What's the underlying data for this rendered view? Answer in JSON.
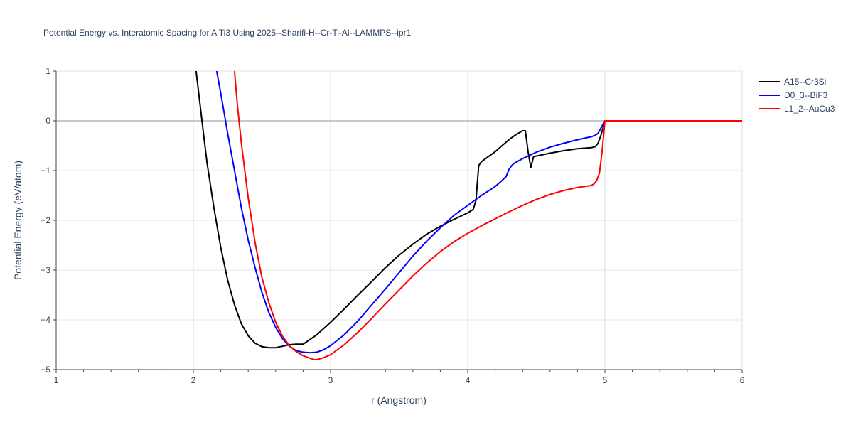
{
  "chart_data": {
    "type": "line",
    "title": "Potential Energy vs. Interatomic Spacing for AlTi3 Using 2025--Sharifi-H--Cr-Ti-Al--LAMMPS--ipr1",
    "xlabel": "r (Angstrom)",
    "ylabel": "Potential Energy (eV/atom)",
    "xlim": [
      1,
      6
    ],
    "ylim": [
      -5,
      1
    ],
    "xticks": [
      1,
      2,
      3,
      4,
      5,
      6
    ],
    "yticks": [
      -5,
      -4,
      -3,
      -2,
      -1,
      0,
      1
    ],
    "xtick_labels": [
      "1",
      "2",
      "3",
      "4",
      "5",
      "6"
    ],
    "ytick_labels": [
      "−5",
      "−4",
      "−3",
      "−2",
      "−1",
      "0",
      "1"
    ],
    "grid": true,
    "legend_position": "top-right",
    "series": [
      {
        "name": "A15--Cr3Si",
        "color": "#000000",
        "x": [
          2.02,
          2.05,
          2.08,
          2.1,
          2.15,
          2.2,
          2.25,
          2.3,
          2.35,
          2.4,
          2.45,
          2.5,
          2.55,
          2.6,
          2.65,
          2.7,
          2.75,
          2.8,
          2.9,
          3.0,
          3.1,
          3.2,
          3.3,
          3.4,
          3.5,
          3.6,
          3.7,
          3.8,
          3.9,
          4.0,
          4.04,
          4.06,
          4.08,
          4.1,
          4.15,
          4.2,
          4.25,
          4.3,
          4.35,
          4.4,
          4.42,
          4.44,
          4.46,
          4.48,
          4.6,
          4.7,
          4.8,
          4.9,
          4.93,
          4.95,
          4.97,
          5.0,
          5.5,
          6.0
        ],
        "y": [
          1.0,
          0.3,
          -0.4,
          -0.85,
          -1.75,
          -2.55,
          -3.2,
          -3.7,
          -4.08,
          -4.32,
          -4.47,
          -4.54,
          -4.56,
          -4.56,
          -4.53,
          -4.5,
          -4.49,
          -4.49,
          -4.3,
          -4.05,
          -3.78,
          -3.5,
          -3.23,
          -2.95,
          -2.7,
          -2.48,
          -2.28,
          -2.12,
          -1.98,
          -1.85,
          -1.78,
          -1.6,
          -0.9,
          -0.82,
          -0.72,
          -0.62,
          -0.5,
          -0.38,
          -0.28,
          -0.2,
          -0.2,
          -0.62,
          -0.94,
          -0.72,
          -0.65,
          -0.6,
          -0.56,
          -0.54,
          -0.52,
          -0.45,
          -0.3,
          0.0,
          0.0,
          0.0
        ]
      },
      {
        "name": "D0_3--BiF3",
        "color": "#0000ff",
        "x": [
          2.17,
          2.2,
          2.25,
          2.3,
          2.35,
          2.4,
          2.45,
          2.5,
          2.55,
          2.6,
          2.65,
          2.7,
          2.75,
          2.8,
          2.85,
          2.9,
          2.95,
          3.0,
          3.1,
          3.2,
          3.3,
          3.4,
          3.5,
          3.6,
          3.7,
          3.8,
          3.9,
          4.0,
          4.1,
          4.2,
          4.25,
          4.28,
          4.3,
          4.32,
          4.34,
          4.4,
          4.5,
          4.6,
          4.7,
          4.8,
          4.9,
          4.93,
          4.95,
          4.97,
          5.0,
          5.5,
          6.0
        ],
        "y": [
          1.0,
          0.55,
          -0.25,
          -1.0,
          -1.75,
          -2.4,
          -2.95,
          -3.45,
          -3.85,
          -4.15,
          -4.38,
          -4.53,
          -4.62,
          -4.65,
          -4.66,
          -4.65,
          -4.6,
          -4.52,
          -4.3,
          -4.02,
          -3.7,
          -3.38,
          -3.05,
          -2.72,
          -2.42,
          -2.15,
          -1.9,
          -1.7,
          -1.5,
          -1.32,
          -1.2,
          -1.12,
          -0.98,
          -0.9,
          -0.85,
          -0.76,
          -0.63,
          -0.53,
          -0.45,
          -0.38,
          -0.32,
          -0.29,
          -0.25,
          -0.15,
          0.0,
          0.0,
          0.0
        ]
      },
      {
        "name": "L1_2--AuCu3",
        "color": "#ff0000",
        "x": [
          2.3,
          2.32,
          2.35,
          2.4,
          2.45,
          2.5,
          2.55,
          2.6,
          2.65,
          2.7,
          2.75,
          2.8,
          2.85,
          2.88,
          2.9,
          2.95,
          3.0,
          3.05,
          3.1,
          3.2,
          3.3,
          3.4,
          3.5,
          3.6,
          3.7,
          3.8,
          3.9,
          4.0,
          4.1,
          4.2,
          4.3,
          4.4,
          4.5,
          4.6,
          4.7,
          4.8,
          4.9,
          4.92,
          4.94,
          4.96,
          4.98,
          5.0,
          5.5,
          6.0
        ],
        "y": [
          1.0,
          0.35,
          -0.45,
          -1.55,
          -2.45,
          -3.15,
          -3.65,
          -4.05,
          -4.33,
          -4.52,
          -4.64,
          -4.72,
          -4.77,
          -4.8,
          -4.8,
          -4.76,
          -4.7,
          -4.6,
          -4.5,
          -4.25,
          -3.97,
          -3.68,
          -3.4,
          -3.12,
          -2.86,
          -2.63,
          -2.43,
          -2.26,
          -2.11,
          -1.97,
          -1.83,
          -1.7,
          -1.58,
          -1.48,
          -1.4,
          -1.34,
          -1.3,
          -1.27,
          -1.2,
          -1.05,
          -0.6,
          0.0,
          0.0,
          0.0
        ]
      }
    ]
  }
}
